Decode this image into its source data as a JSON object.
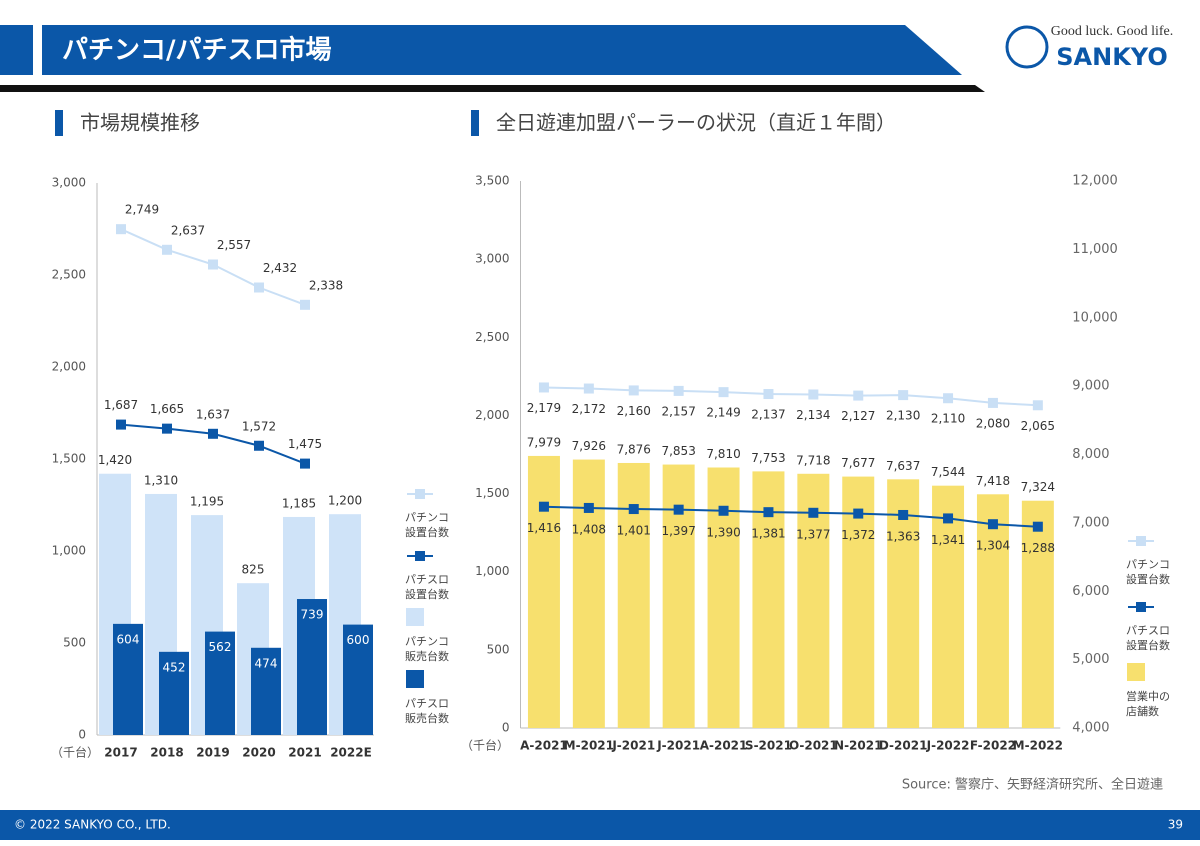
{
  "header": {
    "title": "パチンコ/パチスロ市場",
    "logo_tagline": "Good luck. Good life.",
    "logo_name": "SANKYO"
  },
  "chart_data": [
    {
      "type": "bar",
      "title": "市場規模推移",
      "ylabel": "（千台）",
      "categories": [
        "2017",
        "2018",
        "2019",
        "2020",
        "2021",
        "2022E"
      ],
      "ylim": [
        0,
        3000
      ],
      "yticks": [
        0,
        500,
        {
          "value": 1000,
          "label": "1,000"
        },
        {
          "value": 1500,
          "label": "1,500"
        },
        {
          "value": 2000,
          "label": "2,000"
        },
        {
          "value": 2500,
          "label": "2,500"
        },
        {
          "value": 3000,
          "label": "3,000"
        }
      ],
      "series": [
        {
          "name": "パチンコ設置台数",
          "type": "line",
          "color": "#c9dff5",
          "values": [
            2749,
            2637,
            2557,
            2432,
            2338,
            null
          ],
          "value_labels": [
            "2,749",
            "2,637",
            "2,557",
            "2,432",
            "2,338",
            null
          ]
        },
        {
          "name": "パチスロ設置台数",
          "type": "line",
          "color": "#0b57a8",
          "values": [
            1687,
            1665,
            1637,
            1572,
            1475,
            null
          ],
          "value_labels": [
            "1,687",
            "1,665",
            "1,637",
            "1,572",
            "1,475",
            null
          ]
        },
        {
          "name": "パチンコ販売台数",
          "type": "bar",
          "color": "#cfe3f8",
          "values": [
            1420,
            1310,
            1195,
            825,
            1185,
            1200
          ],
          "value_labels": [
            "1,420",
            "1,310",
            "1,195",
            "825",
            "1,185",
            "1,200"
          ]
        },
        {
          "name": "パチスロ販売台数",
          "type": "bar",
          "color": "#0b57a8",
          "values": [
            604,
            452,
            562,
            474,
            739,
            600
          ]
        }
      ]
    },
    {
      "type": "bar",
      "title": "全日遊連加盟パーラーの状況（直近１年間）",
      "ylabel": "（千台）",
      "categories": [
        "A-2021",
        "M-2021",
        "J-2021",
        "J-2021",
        "A-2021",
        "S-2021",
        "O-2021",
        "N-2021",
        "D-2021",
        "J-2022",
        "F-2022",
        "M-2022"
      ],
      "ylim": [
        0,
        3500
      ],
      "yticks": [
        0,
        500,
        {
          "value": 1000,
          "label": "1,000"
        },
        {
          "value": 1500,
          "label": "1,500"
        },
        {
          "value": 2000,
          "label": "2,000"
        },
        {
          "value": 2500,
          "label": "2,500"
        },
        {
          "value": 3000,
          "label": "3,000"
        },
        {
          "value": 3500,
          "label": "3,500"
        }
      ],
      "y2lim": [
        4000,
        12000
      ],
      "y2ticks": [
        {
          "value": 4000,
          "label": "4,000"
        },
        {
          "value": 5000,
          "label": "5,000"
        },
        {
          "value": 6000,
          "label": "6,000"
        },
        {
          "value": 7000,
          "label": "7,000"
        },
        {
          "value": 8000,
          "label": "8,000"
        },
        {
          "value": 9000,
          "label": "9,000"
        },
        {
          "value": 10000,
          "label": "10,000"
        },
        {
          "value": 11000,
          "label": "11,000"
        },
        {
          "value": 12000,
          "label": "12,000"
        }
      ],
      "series": [
        {
          "name": "パチンコ設置台数",
          "type": "line",
          "color": "#c9dff5",
          "values": [
            2179,
            2172,
            2160,
            2157,
            2149,
            2137,
            2134,
            2127,
            2130,
            2110,
            2080,
            2065
          ],
          "value_labels": [
            "2,179",
            "2,172",
            "2,160",
            "2,157",
            "2,149",
            "2,137",
            "2,134",
            "2,127",
            "2,130",
            "2,110",
            "2,080",
            "2,065"
          ]
        },
        {
          "name": "パチスロ設置台数",
          "type": "line",
          "color": "#0b57a8",
          "values": [
            1416,
            1408,
            1401,
            1397,
            1390,
            1381,
            1377,
            1372,
            1363,
            1341,
            1304,
            1288
          ],
          "value_labels": [
            "1,416",
            "1,408",
            "1,401",
            "1,397",
            "1,390",
            "1,381",
            "1,377",
            "1,372",
            "1,363",
            "1,341",
            "1,304",
            "1,288"
          ]
        },
        {
          "name": "営業中の店舗数",
          "type": "bar",
          "axis": "y2",
          "color": "#f7e06e",
          "values": [
            7979,
            7926,
            7876,
            7853,
            7810,
            7753,
            7718,
            7677,
            7637,
            7544,
            7418,
            7324
          ],
          "value_labels": [
            "7,979",
            "7,926",
            "7,876",
            "7,853",
            "7,810",
            "7,753",
            "7,718",
            "7,677",
            "7,637",
            "7,544",
            "7,418",
            "7,324"
          ]
        }
      ]
    }
  ],
  "source": "Source: 警察庁、矢野経済研究所、全日遊連",
  "footer": {
    "copyright": "© 2022 SANKYO CO., LTD.",
    "page": "39"
  }
}
